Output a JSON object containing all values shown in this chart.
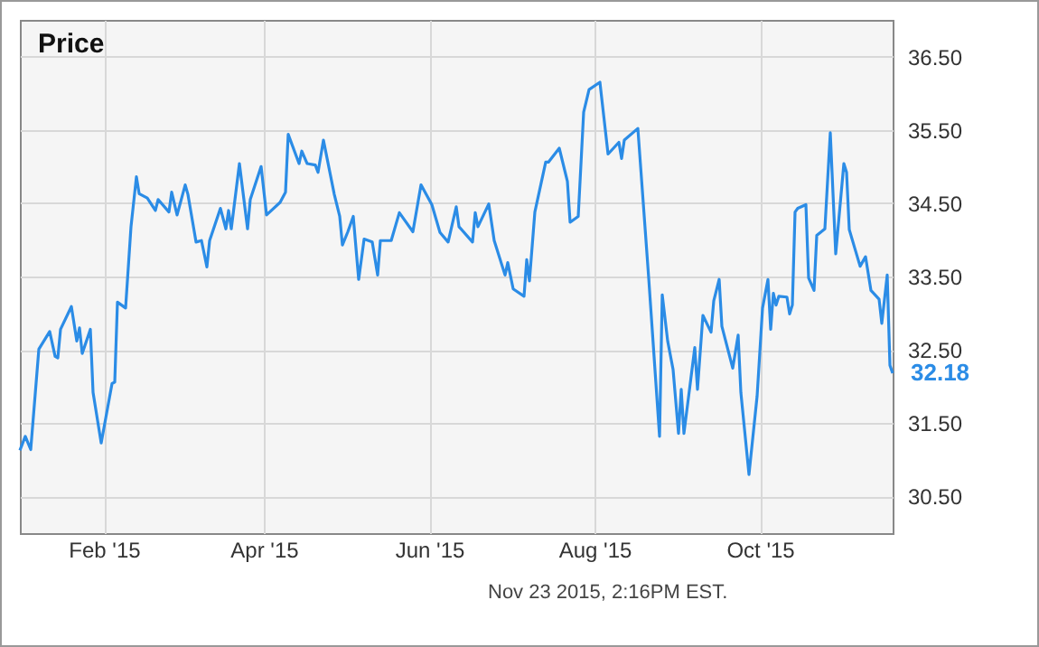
{
  "chart_data": {
    "type": "line",
    "title": "Price",
    "x": [
      "2015-01-01",
      "2015-01-03",
      "2015-01-05",
      "2015-01-08",
      "2015-01-12",
      "2015-01-14",
      "2015-01-15",
      "2015-01-16",
      "2015-01-20",
      "2015-01-22",
      "2015-01-23",
      "2015-01-24",
      "2015-01-27",
      "2015-01-28",
      "2015-01-31",
      "2015-02-04",
      "2015-02-05",
      "2015-02-06",
      "2015-02-09",
      "2015-02-11",
      "2015-02-13",
      "2015-02-14",
      "2015-02-17",
      "2015-02-20",
      "2015-02-21",
      "2015-02-25",
      "2015-02-26",
      "2015-02-28",
      "2015-03-03",
      "2015-03-04",
      "2015-03-07",
      "2015-03-09",
      "2015-03-11",
      "2015-03-12",
      "2015-03-16",
      "2015-03-18",
      "2015-03-19",
      "2015-03-20",
      "2015-03-23",
      "2015-03-26",
      "2015-03-27",
      "2015-03-31",
      "2015-04-02",
      "2015-04-07",
      "2015-04-09",
      "2015-04-10",
      "2015-04-14",
      "2015-04-15",
      "2015-04-17",
      "2015-04-20",
      "2015-04-21",
      "2015-04-23",
      "2015-04-27",
      "2015-04-29",
      "2015-04-30",
      "2015-05-02",
      "2015-05-04",
      "2015-05-06",
      "2015-05-08",
      "2015-05-11",
      "2015-05-13",
      "2015-05-14",
      "2015-05-18",
      "2015-05-21",
      "2015-05-26",
      "2015-05-29",
      "2015-06-02",
      "2015-06-05",
      "2015-06-08",
      "2015-06-11",
      "2015-06-12",
      "2015-06-17",
      "2015-06-18",
      "2015-06-19",
      "2015-06-23",
      "2015-06-25",
      "2015-06-29",
      "2015-06-30",
      "2015-07-02",
      "2015-07-06",
      "2015-07-07",
      "2015-07-08",
      "2015-07-10",
      "2015-07-14",
      "2015-07-15",
      "2015-07-19",
      "2015-07-22",
      "2015-07-23",
      "2015-07-26",
      "2015-07-28",
      "2015-07-30",
      "2015-08-03",
      "2015-08-06",
      "2015-08-10",
      "2015-08-11",
      "2015-08-12",
      "2015-08-17",
      "2015-08-21",
      "2015-08-25",
      "2015-08-26",
      "2015-08-28",
      "2015-08-30",
      "2015-09-01",
      "2015-09-02",
      "2015-09-03",
      "2015-09-07",
      "2015-09-08",
      "2015-09-10",
      "2015-09-13",
      "2015-09-14",
      "2015-09-16",
      "2015-09-17",
      "2015-09-21",
      "2015-09-23",
      "2015-09-24",
      "2015-09-27",
      "2015-09-30",
      "2015-10-02",
      "2015-10-04",
      "2015-10-05",
      "2015-10-06",
      "2015-10-07",
      "2015-10-08",
      "2015-10-11",
      "2015-10-12",
      "2015-10-13",
      "2015-10-14",
      "2015-10-15",
      "2015-10-18",
      "2015-10-19",
      "2015-10-21",
      "2015-10-22",
      "2015-10-25",
      "2015-10-27",
      "2015-10-29",
      "2015-11-01",
      "2015-11-02",
      "2015-11-03",
      "2015-11-05",
      "2015-11-07",
      "2015-11-09",
      "2015-11-11",
      "2015-11-14",
      "2015-11-15",
      "2015-11-17",
      "2015-11-18",
      "2015-11-19"
    ],
    "series": [
      {
        "color": "#2b8ce6",
        "values": [
          31.13,
          31.32,
          31.14,
          32.51,
          32.75,
          32.41,
          32.39,
          32.78,
          33.09,
          32.62,
          32.8,
          32.45,
          32.78,
          31.92,
          31.23,
          32.04,
          32.06,
          33.15,
          33.07,
          34.18,
          34.86,
          34.63,
          34.57,
          34.4,
          34.55,
          34.38,
          34.65,
          34.34,
          34.75,
          34.62,
          33.97,
          33.99,
          33.63,
          33.99,
          34.43,
          34.15,
          34.4,
          34.15,
          35.04,
          34.15,
          34.55,
          35.0,
          34.34,
          34.51,
          34.65,
          35.44,
          35.04,
          35.21,
          35.04,
          35.02,
          34.92,
          35.36,
          34.62,
          34.32,
          33.93,
          34.11,
          34.32,
          33.46,
          34.01,
          33.97,
          33.52,
          33.99,
          33.99,
          34.37,
          34.11,
          34.75,
          34.48,
          34.1,
          33.97,
          34.45,
          34.18,
          33.97,
          34.37,
          34.18,
          34.49,
          33.99,
          33.52,
          33.69,
          33.33,
          33.23,
          33.73,
          33.44,
          34.38,
          35.06,
          35.06,
          35.25,
          34.8,
          34.24,
          34.32,
          35.74,
          36.05,
          36.15,
          35.17,
          35.33,
          35.11,
          35.36,
          35.52,
          33.48,
          31.32,
          33.25,
          32.62,
          32.23,
          31.36,
          31.96,
          31.36,
          32.53,
          31.96,
          32.97,
          32.74,
          33.17,
          33.46,
          32.82,
          32.25,
          32.7,
          31.92,
          30.8,
          31.87,
          33.07,
          33.46,
          32.78,
          33.27,
          33.11,
          33.23,
          33.22,
          32.99,
          33.11,
          34.38,
          34.43,
          34.48,
          33.48,
          33.31,
          34.06,
          34.15,
          35.46,
          33.81,
          35.04,
          34.92,
          34.14,
          33.89,
          33.64,
          33.77,
          33.31,
          33.19,
          32.86,
          33.52,
          32.29,
          32.18
        ]
      }
    ],
    "xlim": [
      "2015-01-01",
      "2015-11-19"
    ],
    "xticks": [
      {
        "value": "2015-02-01",
        "label": "Feb '15"
      },
      {
        "value": "2015-04-01",
        "label": "Apr '15"
      },
      {
        "value": "2015-06-01",
        "label": "Jun '15"
      },
      {
        "value": "2015-08-01",
        "label": "Aug '15"
      },
      {
        "value": "2015-10-01",
        "label": "Oct '15"
      }
    ],
    "ylim": [
      30.0,
      37.0
    ],
    "yticks": [
      {
        "value": 30.5,
        "label": "30.50"
      },
      {
        "value": 31.5,
        "label": "31.50"
      },
      {
        "value": 32.5,
        "label": "32.50"
      },
      {
        "value": 33.5,
        "label": "33.50"
      },
      {
        "value": 34.5,
        "label": "34.50"
      },
      {
        "value": 35.5,
        "label": "35.50"
      },
      {
        "value": 36.5,
        "label": "36.50"
      }
    ],
    "grid": true,
    "marker": "none",
    "line_style": "solid",
    "annotations": [
      {
        "text": "32.18",
        "x": "2015-11-19",
        "y": 32.18
      },
      "Nov 23 2015, 2:16PM EST."
    ]
  }
}
